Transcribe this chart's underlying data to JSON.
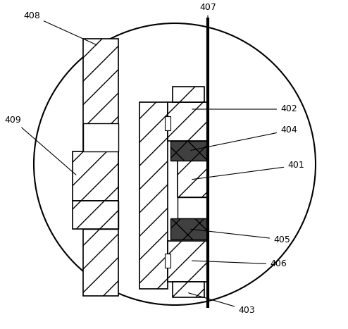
{
  "fig_width": 4.94,
  "fig_height": 4.67,
  "dpi": 100,
  "bg_color": "#ffffff",
  "label_fontsize": 9
}
